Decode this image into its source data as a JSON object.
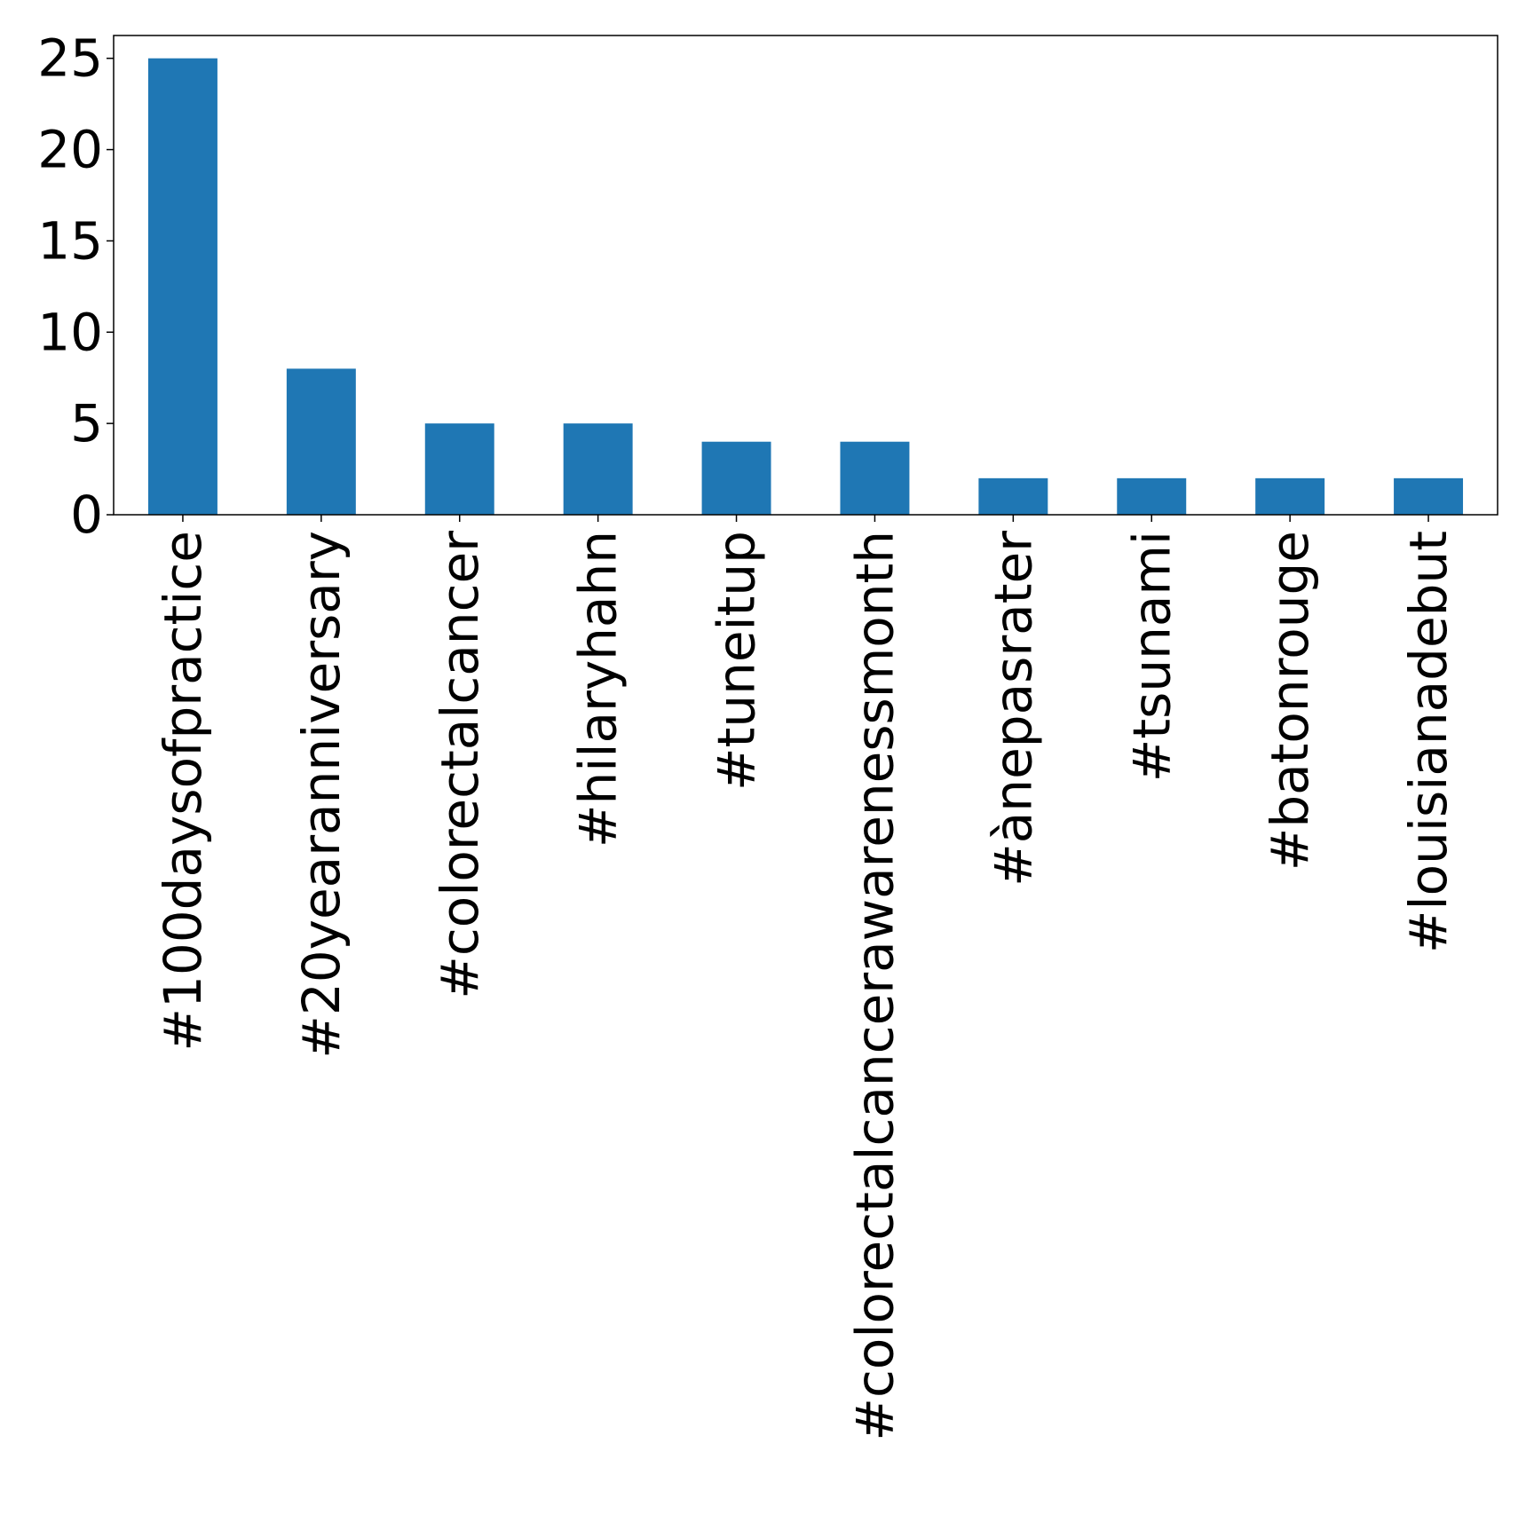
{
  "chart_data": {
    "type": "bar",
    "title": "",
    "xlabel": "",
    "ylabel": "",
    "categories": [
      "#100daysofpractice",
      "#20yearanniversary",
      "#colorectalcancer",
      "#hilaryhahn",
      "#tuneitup",
      "#colorectalcancerawarenessmonth",
      "#ànepasrater",
      "#tsunami",
      "#batonrouge",
      "#louisianadebut"
    ],
    "values": [
      25,
      8,
      5,
      5,
      4,
      4,
      2,
      2,
      2,
      2
    ],
    "ylim": [
      0,
      26.25
    ],
    "yticks": [
      0,
      5,
      10,
      15,
      20,
      25
    ],
    "grid": false,
    "legend": "none",
    "bar_color": "#1f77b4"
  }
}
